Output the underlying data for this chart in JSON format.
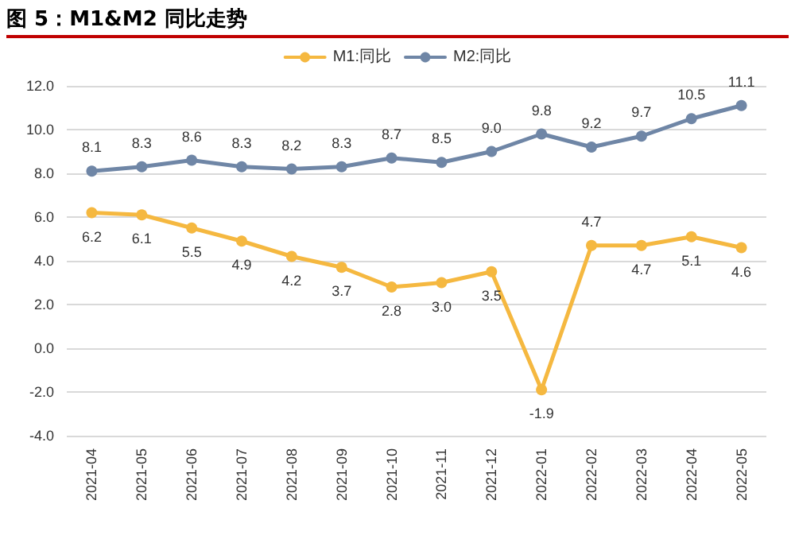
{
  "chart_data": {
    "type": "line",
    "title": "图 5：M1&M2 同比走势",
    "categories": [
      "2021-04",
      "2021-05",
      "2021-06",
      "2021-07",
      "2021-08",
      "2021-09",
      "2021-10",
      "2021-11",
      "2021-12",
      "2022-01",
      "2022-02",
      "2022-03",
      "2022-04",
      "2022-05"
    ],
    "series": [
      {
        "name": "M1:同比",
        "color": "#f5b840",
        "values": [
          6.2,
          6.1,
          5.5,
          4.9,
          4.2,
          3.7,
          2.8,
          3.0,
          3.5,
          -1.9,
          4.7,
          4.7,
          5.1,
          4.6
        ],
        "value_labels": [
          "6.2",
          "6.1",
          "5.5",
          "4.9",
          "4.2",
          "3.7",
          "2.8",
          "3.0",
          "3.5",
          "-1.9",
          "4.7",
          "4.7",
          "5.1",
          "4.6"
        ]
      },
      {
        "name": "M2:同比",
        "color": "#6f86a6",
        "values": [
          8.1,
          8.3,
          8.6,
          8.3,
          8.2,
          8.3,
          8.7,
          8.5,
          9.0,
          9.8,
          9.2,
          9.7,
          10.5,
          11.1
        ],
        "value_labels": [
          "8.1",
          "8.3",
          "8.6",
          "8.3",
          "8.2",
          "8.3",
          "8.7",
          "8.5",
          "9.0",
          "9.8",
          "9.2",
          "9.7",
          "10.5",
          "11.1"
        ]
      }
    ],
    "ylim": [
      -4,
      12
    ],
    "yticks": [
      {
        "value": -4,
        "label": "-4.0"
      },
      {
        "value": -2,
        "label": "-2.0"
      },
      {
        "value": 0,
        "label": "0.0"
      },
      {
        "value": 2,
        "label": "2.0"
      },
      {
        "value": 4,
        "label": "4.0"
      },
      {
        "value": 6,
        "label": "6.0"
      },
      {
        "value": 8,
        "label": "8.0"
      },
      {
        "value": 10,
        "label": "10.0"
      },
      {
        "value": 12,
        "label": "12.0"
      }
    ],
    "grid": "y",
    "legend": "top",
    "marker": "circle",
    "line_style": "solid"
  }
}
